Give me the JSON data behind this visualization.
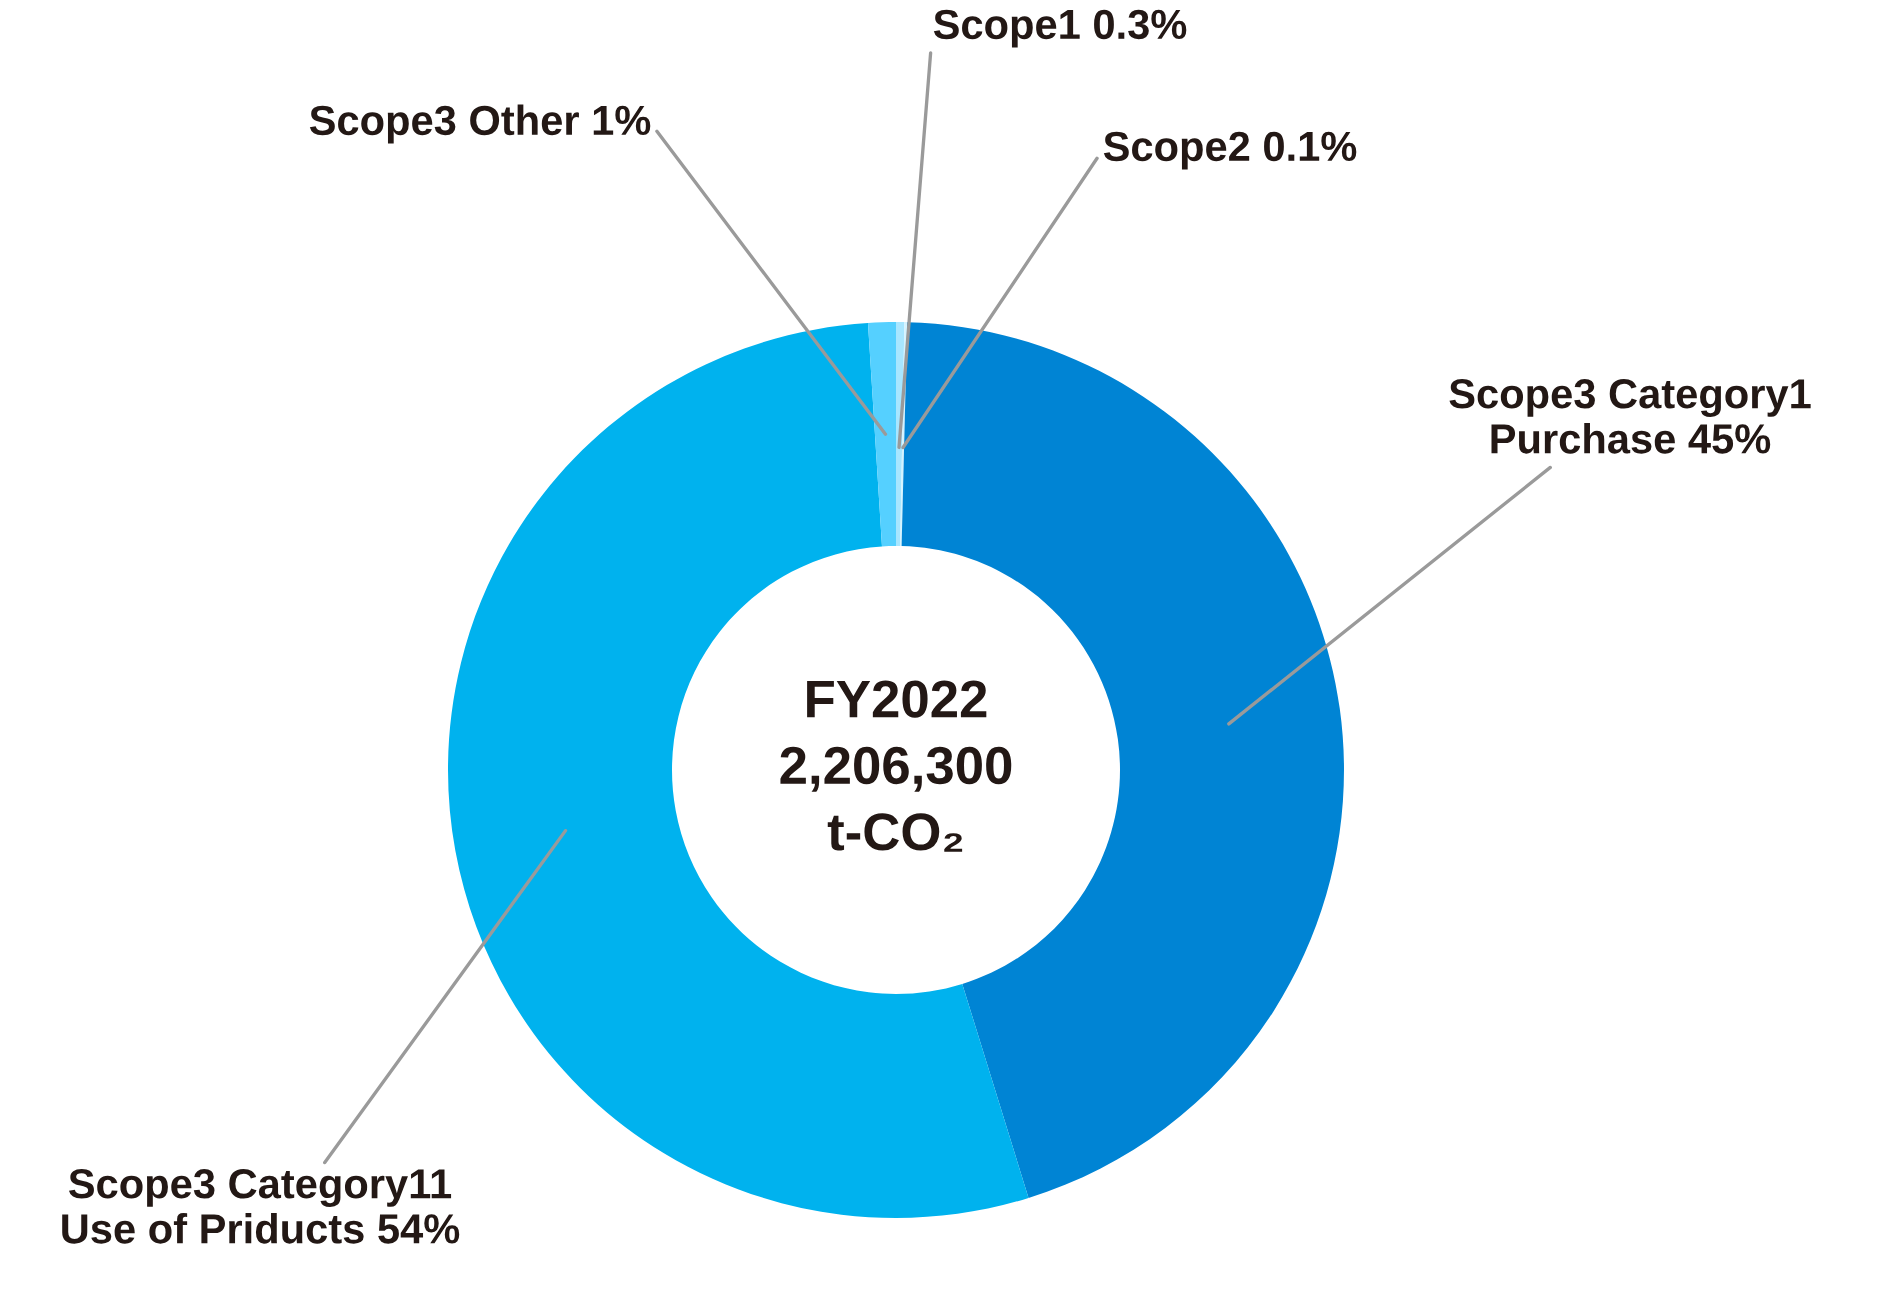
{
  "chart_data": {
    "type": "donut",
    "title": "FY2022\n2,206,300\nt-CO₂",
    "categories": [
      "Scope1",
      "Scope2",
      "Scope3 Category1\nPurchase",
      "Scope3 Category11\nUse of Priducts",
      "Scope3 Other"
    ],
    "values": [
      0.3,
      0.1,
      45,
      54,
      1
    ],
    "value_labels": [
      "0.3%",
      "0.1%",
      "45%",
      "54%",
      "1%"
    ],
    "colors": [
      "#a8e6ff",
      "#d4f3ff",
      "#0084d4",
      "#00b2ee",
      "#55d0ff"
    ],
    "legend": false
  }
}
